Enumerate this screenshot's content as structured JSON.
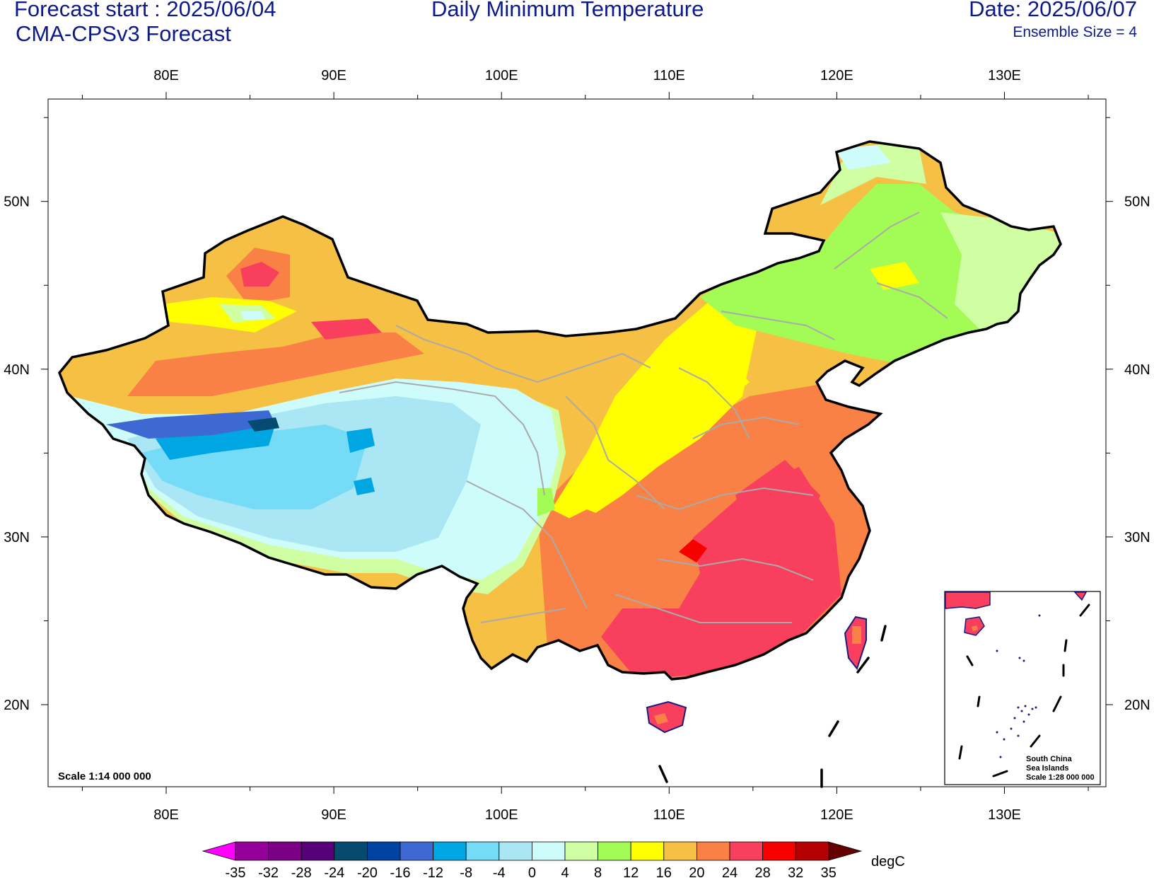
{
  "header": {
    "forecast_start": "Forecast start : 2025/06/04",
    "model": "CMA-CPSv3 Forecast",
    "title": "Daily Minimum Temperature",
    "date": "Date: 2025/06/07",
    "ensemble": "Ensemble Size = 4"
  },
  "axes": {
    "lon_labels": [
      "80E",
      "90E",
      "100E",
      "110E",
      "120E",
      "130E"
    ],
    "lat_labels": [
      "50N",
      "40N",
      "30N",
      "20N"
    ],
    "lon_range": [
      73,
      136
    ],
    "lat_range": [
      15,
      56
    ]
  },
  "map": {
    "scale_note": "Scale 1:14 000 000",
    "inset_lines": [
      "South China",
      "Sea Islands",
      "Scale 1:28 000 000"
    ]
  },
  "colorbar": {
    "unit": "degC",
    "labels": [
      "-35",
      "-32",
      "-28",
      "-24",
      "-20",
      "-16",
      "-12",
      "-8",
      "-4",
      "0",
      "4",
      "8",
      "12",
      "16",
      "20",
      "24",
      "28",
      "32",
      "35"
    ],
    "colors": [
      "#ff00ff",
      "#94009a",
      "#7b0085",
      "#56007a",
      "#054a6f",
      "#0042a0",
      "#3e69d2",
      "#00a6e2",
      "#75dbf7",
      "#abe6f4",
      "#cdfcfb",
      "#d0fea3",
      "#a3fc55",
      "#ffff00",
      "#f5c044",
      "#fa8145",
      "#f8405e",
      "#f60000",
      "#b40000",
      "#640000"
    ]
  }
}
